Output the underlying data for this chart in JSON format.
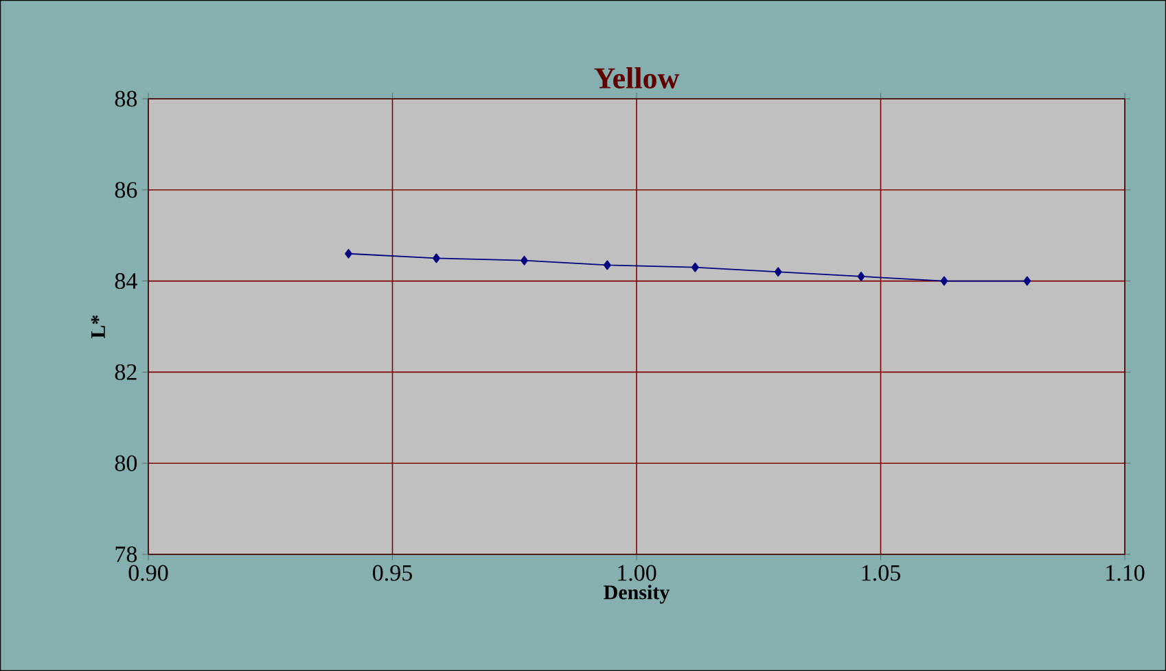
{
  "chart_data": {
    "type": "line",
    "title": "Yellow",
    "xlabel": "Density",
    "ylabel": "L*",
    "x": [
      0.941,
      0.959,
      0.977,
      0.994,
      1.012,
      1.029,
      1.046,
      1.063,
      1.08
    ],
    "series": [
      {
        "color": "#000080",
        "values": [
          84.6,
          84.5,
          84.45,
          84.35,
          84.3,
          84.2,
          84.1,
          84.0,
          84.0
        ]
      }
    ],
    "xlim": [
      0.9,
      1.1
    ],
    "xticks": [
      {
        "value": 0.9,
        "label": "0.90"
      },
      {
        "value": 0.95,
        "label": "0.95"
      },
      {
        "value": 1.0,
        "label": "1.00"
      },
      {
        "value": 1.05,
        "label": "1.05"
      },
      {
        "value": 1.1,
        "label": "1.10"
      }
    ],
    "ylim": [
      78,
      88
    ],
    "yticks": [
      78,
      80,
      82,
      84,
      86,
      88
    ],
    "grid": true,
    "marker": "diamond",
    "line_style": "solid"
  }
}
